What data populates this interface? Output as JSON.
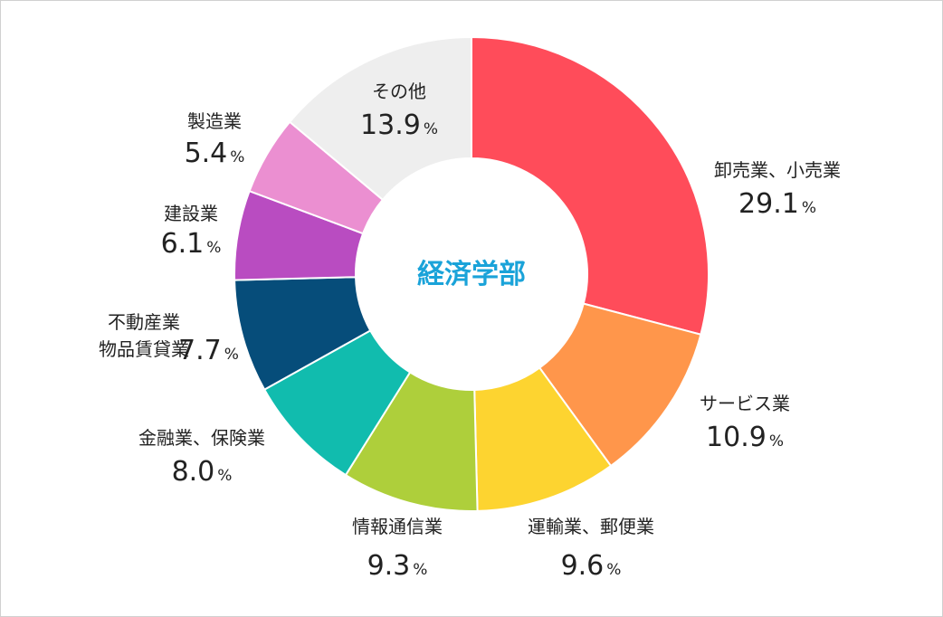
{
  "chart_data": {
    "type": "pie",
    "title": "経済学部",
    "title_color": "#1aa3d9",
    "unit": "%",
    "slices": [
      {
        "label": [
          "卸売業、小売業"
        ],
        "value": 29.1,
        "color": "#ff4c5a"
      },
      {
        "label": [
          "サービス業"
        ],
        "value": 10.9,
        "color": "#ff964b"
      },
      {
        "label": [
          "運輸業、郵便業"
        ],
        "value": 9.6,
        "color": "#fdd430"
      },
      {
        "label": [
          "情報通信業"
        ],
        "value": 9.3,
        "color": "#aecf3b"
      },
      {
        "label": [
          "金融業、保険業"
        ],
        "value": 8.0,
        "color": "#11bcae"
      },
      {
        "label": [
          "不動産業",
          "物品賃貸業"
        ],
        "value": 7.7,
        "color": "#064d7a"
      },
      {
        "label": [
          "建設業"
        ],
        "value": 6.1,
        "color": "#b94cc1"
      },
      {
        "label": [
          "製造業"
        ],
        "value": 5.4,
        "color": "#eb8fd1"
      },
      {
        "label": [
          "その他"
        ],
        "value": 13.9,
        "color": "#eeeeee"
      }
    ]
  }
}
